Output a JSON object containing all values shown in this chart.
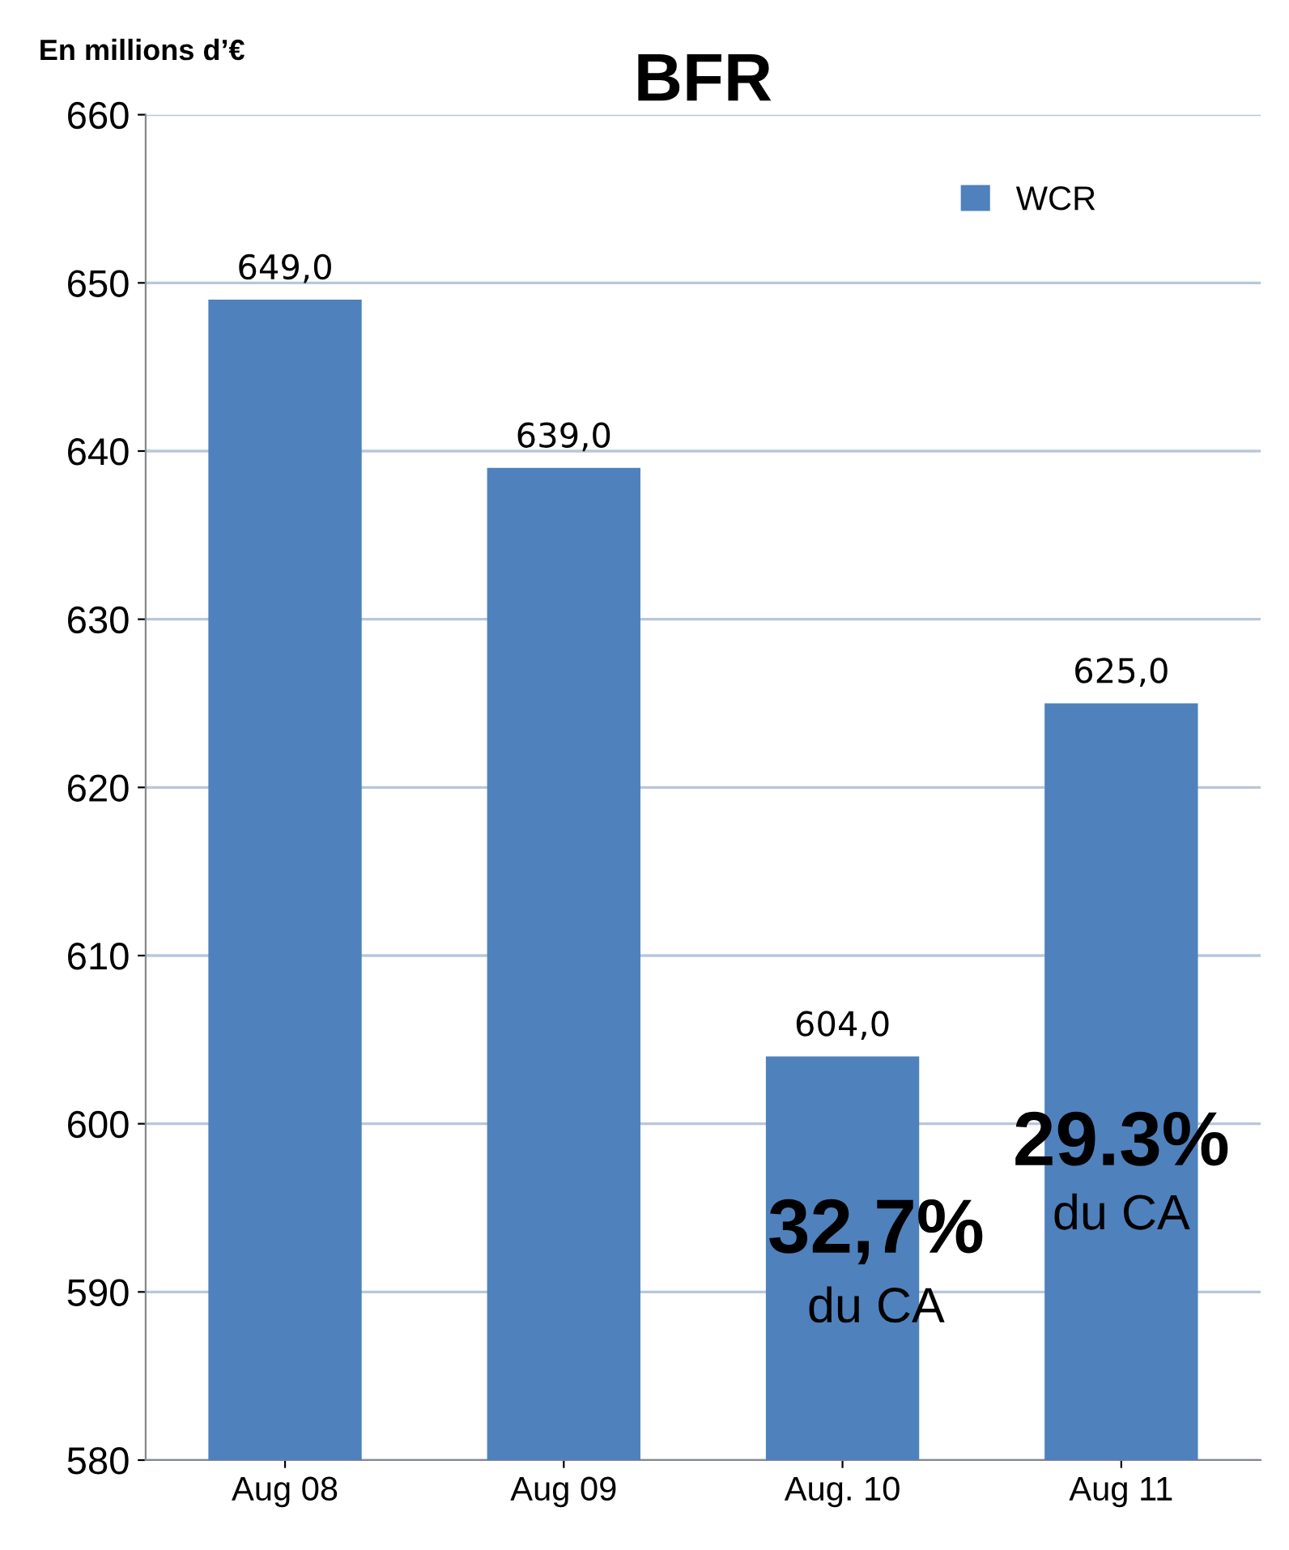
{
  "chart_data": {
    "type": "bar",
    "title": "BFR",
    "ylabel": "En millions d’€",
    "categories": [
      "Aug 08",
      "Aug 09",
      "Aug. 10",
      "Aug 11"
    ],
    "series": [
      {
        "name": "WCR",
        "color": "#4f81bd",
        "values": [
          649.0,
          639.0,
          604.0,
          625.0
        ],
        "value_labels": [
          "649,0",
          "639,0",
          "604,0",
          "625,0"
        ]
      }
    ],
    "ylim": [
      580,
      660
    ],
    "yticks": [
      580,
      590,
      600,
      610,
      620,
      630,
      640,
      650,
      660
    ],
    "grid": "y",
    "legend": "top right",
    "annotations": [
      "32,7%",
      "du CA",
      "29.3%",
      "du CA"
    ]
  }
}
